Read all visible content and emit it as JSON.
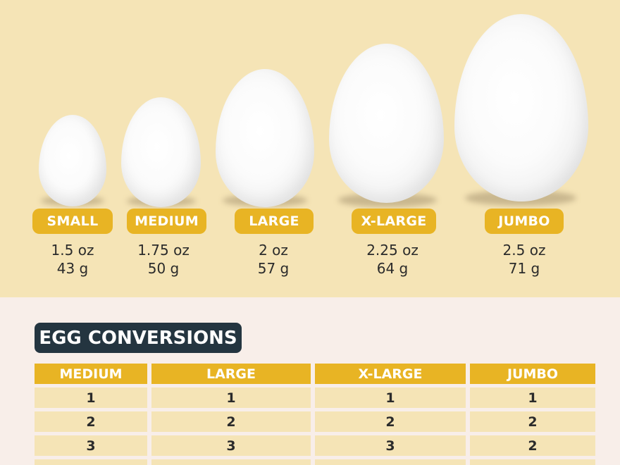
{
  "eggs": [
    {
      "label": "SMALL",
      "oz": "1.5 oz",
      "g": "43 g"
    },
    {
      "label": "MEDIUM",
      "oz": "1.75 oz",
      "g": "50 g"
    },
    {
      "label": "LARGE",
      "oz": "2 oz",
      "g": "57 g"
    },
    {
      "label": "X-LARGE",
      "oz": "2.25 oz",
      "g": "64 g"
    },
    {
      "label": "JUMBO",
      "oz": "2.5 oz",
      "g": "71 g"
    }
  ],
  "conversions": {
    "title": "EGG CONVERSIONS",
    "headers": [
      "MEDIUM",
      "LARGE",
      "X-LARGE",
      "JUMBO"
    ],
    "rows": [
      [
        "1",
        "1",
        "1",
        "1"
      ],
      [
        "2",
        "2",
        "2",
        "2"
      ],
      [
        "3",
        "3",
        "3",
        "2"
      ],
      [
        "",
        "",
        "",
        ""
      ]
    ]
  },
  "colors": {
    "accent": "#e8b424",
    "header_dark": "#243540",
    "cream": "#f5e4b6",
    "background": "#f8eee9"
  }
}
